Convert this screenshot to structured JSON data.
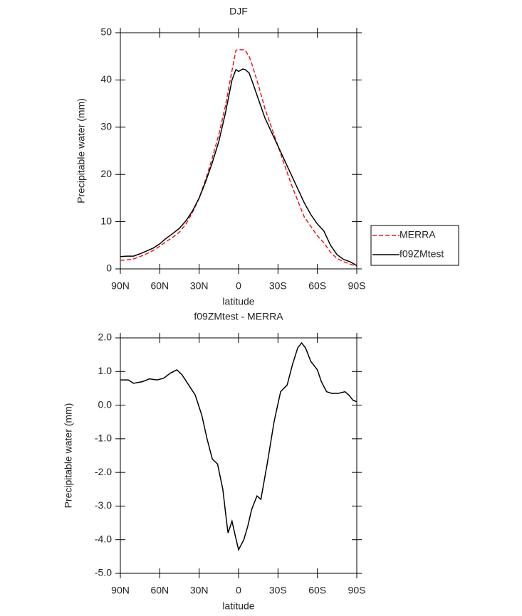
{
  "chart_data": [
    {
      "type": "line",
      "title": "DJF",
      "xlabel": "latitude",
      "ylabel": "Precipitable water (mm)",
      "x": [
        90,
        85,
        80,
        75,
        70,
        65,
        60,
        55,
        50,
        45,
        40,
        35,
        30,
        25,
        20,
        15,
        10,
        5,
        2,
        0,
        -3,
        -5,
        -8,
        -10,
        -15,
        -20,
        -25,
        -30,
        -35,
        -40,
        -45,
        -50,
        -55,
        -60,
        -65,
        -70,
        -75,
        -80,
        -85,
        -90
      ],
      "series": [
        {
          "name": "MERRA",
          "color": "#e8191e",
          "linestyle": "dashed",
          "values": [
            1.8,
            1.9,
            2.1,
            2.6,
            3.2,
            3.9,
            4.8,
            5.8,
            6.7,
            7.8,
            9.5,
            12,
            15,
            19,
            23.5,
            28.5,
            34.5,
            42,
            46.3,
            46.4,
            46.4,
            46.3,
            45,
            43.5,
            39,
            34,
            30,
            26,
            22,
            18,
            14.5,
            11,
            9,
            7,
            5.5,
            3.5,
            2.2,
            1.5,
            1,
            0.6
          ]
        },
        {
          "name": "f09ZMtest",
          "color": "#000000",
          "linestyle": "solid",
          "values": [
            2.6,
            2.7,
            2.7,
            3.2,
            3.8,
            4.4,
            5.3,
            6.5,
            7.5,
            8.6,
            10.2,
            12.3,
            15,
            18.5,
            22.5,
            27,
            33,
            40,
            42.2,
            41.8,
            42.3,
            42.2,
            41.5,
            40,
            36,
            32,
            29,
            26,
            23,
            20,
            17,
            14,
            11.5,
            9.5,
            8,
            5,
            3,
            2,
            1.5,
            0.7
          ]
        }
      ],
      "xlim": [
        90,
        -90
      ],
      "xticks": [
        {
          "value": 90,
          "label": "90N"
        },
        {
          "value": 60,
          "label": "60N"
        },
        {
          "value": 30,
          "label": "30N"
        },
        0,
        {
          "value": -30,
          "label": "30S"
        },
        {
          "value": -60,
          "label": "60S"
        },
        {
          "value": -90,
          "label": "90S"
        }
      ],
      "ylim": [
        0,
        50
      ],
      "yticks": [
        0,
        10,
        20,
        30,
        40,
        50
      ],
      "legend": "right"
    },
    {
      "type": "line",
      "title": "f09ZMtest - MERRA",
      "xlabel": "latitude",
      "ylabel": "Precipitable water (mm)",
      "x": [
        90,
        84,
        80,
        73,
        68,
        62,
        57,
        52,
        47,
        43,
        38,
        33,
        28,
        24,
        20,
        16,
        12,
        9,
        8,
        5,
        3,
        0,
        -4,
        -7,
        -10,
        -14,
        -17,
        -22,
        -27,
        -32,
        -37,
        -41,
        -45,
        -48,
        -51,
        -55,
        -60,
        -63,
        -67,
        -71,
        -76,
        -81,
        -84,
        -87,
        -90
      ],
      "series": [
        {
          "name": "f09ZMtest - MERRA",
          "color": "#000000",
          "linestyle": "solid",
          "values": [
            0.75,
            0.75,
            0.65,
            0.7,
            0.78,
            0.75,
            0.8,
            0.95,
            1.05,
            0.9,
            0.6,
            0.3,
            -0.3,
            -1.0,
            -1.6,
            -1.75,
            -2.5,
            -3.5,
            -3.8,
            -3.45,
            -3.8,
            -4.3,
            -4.0,
            -3.6,
            -3.1,
            -2.7,
            -2.8,
            -1.7,
            -0.5,
            0.4,
            0.6,
            1.2,
            1.7,
            1.85,
            1.7,
            1.3,
            1.05,
            0.7,
            0.4,
            0.35,
            0.35,
            0.4,
            0.3,
            0.15,
            0.1
          ]
        }
      ],
      "xlim": [
        90,
        -90
      ],
      "xticks": [
        {
          "value": 90,
          "label": "90N"
        },
        {
          "value": 60,
          "label": "60N"
        },
        {
          "value": 30,
          "label": "30N"
        },
        0,
        {
          "value": -30,
          "label": "30S"
        },
        {
          "value": -60,
          "label": "60S"
        },
        {
          "value": -90,
          "label": "90S"
        }
      ],
      "ylim": [
        -5,
        2
      ],
      "yticks": [
        {
          "value": -5,
          "label": "-5.0"
        },
        {
          "value": -4,
          "label": "-4.0"
        },
        {
          "value": -3,
          "label": "-3.0"
        },
        {
          "value": -2,
          "label": "-2.0"
        },
        {
          "value": -1,
          "label": "-1.0"
        },
        {
          "value": 0,
          "label": "0.0"
        },
        {
          "value": 1,
          "label": "1.0"
        },
        {
          "value": 2,
          "label": "2.0"
        }
      ]
    }
  ]
}
